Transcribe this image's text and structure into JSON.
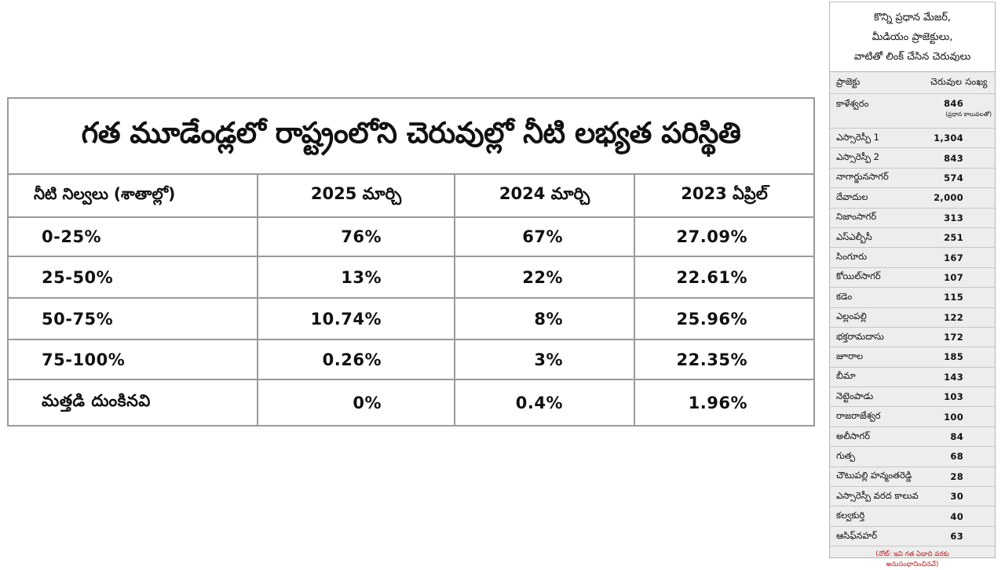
{
  "main_table": {
    "title": "గత మూడేండ్లలో రాష్ట్రంలోని చెరువుల్లో నీటి లభ్యత పరిస్థితి",
    "headers": [
      "నీటి నిల్వలు (శాతాల్లో)",
      "2025 మార్చి",
      "2024 మార్చి",
      "2023 ఏప్రిల్"
    ],
    "rows": [
      [
        "0-25%",
        "76%",
        "67%",
        "27.09%"
      ],
      [
        "25-50%",
        "13%",
        "22%",
        "22.61%"
      ],
      [
        "50-75%",
        "10.74%",
        "8%",
        "25.96%"
      ],
      [
        "75-100%",
        "0.26%",
        "3%",
        "22.35%"
      ],
      [
        "మత్తడి దుంకినవి",
        "0%",
        "0.4%",
        "1.96%"
      ]
    ]
  },
  "side_panel": {
    "title_lines": [
      "కొన్ని ప్రధాన మేజర్,",
      "మీడియం ప్రాజెక్టులు,",
      "వాటితో లింక్ చేసిన చెరువులు"
    ],
    "header": {
      "project": "ప్రాజెక్టు",
      "count": "చెరువుల సంఖ్య"
    },
    "first_row": {
      "project": "కాళేశ్వరం",
      "count": "846",
      "sub": "(ప్రధాన కాలువలతో)"
    },
    "rows": [
      {
        "project": "ఎస్సారెస్పీ 1",
        "count": "1,304"
      },
      {
        "project": "ఎస్సారెస్పీ 2",
        "count": "843"
      },
      {
        "project": "నాగార్జునసాగర్",
        "count": "574"
      },
      {
        "project": "దేవాదుల",
        "count": "2,000"
      },
      {
        "project": "నిజాంసాగర్",
        "count": "313"
      },
      {
        "project": "ఎస్ఎల్బీసీ",
        "count": "251"
      },
      {
        "project": "సింగూరు",
        "count": "167"
      },
      {
        "project": "కోయిల్‌సాగర్",
        "count": "107"
      },
      {
        "project": "కడెం",
        "count": "115"
      },
      {
        "project": "ఎల్లంపల్లి",
        "count": "122"
      },
      {
        "project": "భక్తరామదాసు",
        "count": "172"
      },
      {
        "project": "జూరాల",
        "count": "185"
      },
      {
        "project": "బీమా",
        "count": "143"
      },
      {
        "project": "నెట్టెంపాడు",
        "count": "103"
      },
      {
        "project": "రాజరాజేశ్వర",
        "count": "100"
      },
      {
        "project": "అలీసాగర్",
        "count": "84"
      },
      {
        "project": "గుత్ప",
        "count": "68"
      },
      {
        "project": "చౌటుపల్లి హన్మంతరెడ్డి",
        "count": "28"
      },
      {
        "project": "ఎస్సారెస్పీ వరద కాలువ",
        "count": "30"
      },
      {
        "project": "కల్వకుర్తి",
        "count": "40"
      },
      {
        "project": "ఆసిఫ్‌నహర్",
        "count": "63"
      }
    ],
    "note_lines": [
      "(నోట్: ఇవి గత ఏడాది వరకు",
      "అనుసంధానించినవే)"
    ]
  },
  "colors": {
    "border": "#9a9a9a",
    "panel_bg": "#ededed",
    "note": "#c01818"
  }
}
